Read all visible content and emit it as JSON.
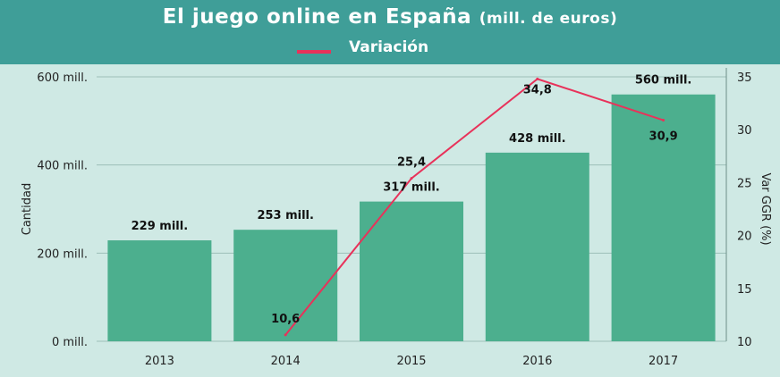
{
  "chart_data": {
    "type": "bar",
    "title": "El juego online en España",
    "subtitle": "(mill. de euros)",
    "categories": [
      "2013",
      "2014",
      "2015",
      "2016",
      "2017"
    ],
    "series": [
      {
        "name": "Cantidad",
        "type": "bar",
        "axis": "left",
        "values": [
          229,
          253,
          317,
          428,
          560
        ],
        "labels": [
          "229 mill.",
          "253 mill.",
          "317 mill.",
          "428 mill.",
          "560 mill."
        ],
        "color": "#4caf8e"
      },
      {
        "name": "Variación",
        "type": "line",
        "axis": "right",
        "values": [
          null,
          10.6,
          25.4,
          34.8,
          30.9
        ],
        "labels": [
          "",
          "10,6",
          "25,4",
          "34,8",
          "30,9"
        ],
        "color": "#e8325a"
      }
    ],
    "y_left": {
      "label": "Cantidad",
      "range": [
        0,
        600
      ],
      "ticks": [
        0,
        200,
        400,
        600
      ],
      "tick_labels": [
        "0 mill.",
        "200 mill.",
        "400 mill.",
        "600 mill."
      ]
    },
    "y_right": {
      "label": "Var GGR (%)",
      "range": [
        10,
        35
      ],
      "ticks": [
        10,
        15,
        20,
        25,
        30,
        35
      ],
      "tick_labels": [
        "10",
        "15",
        "20",
        "25",
        "30",
        "35"
      ]
    },
    "grid": true,
    "legend": "top-center"
  }
}
